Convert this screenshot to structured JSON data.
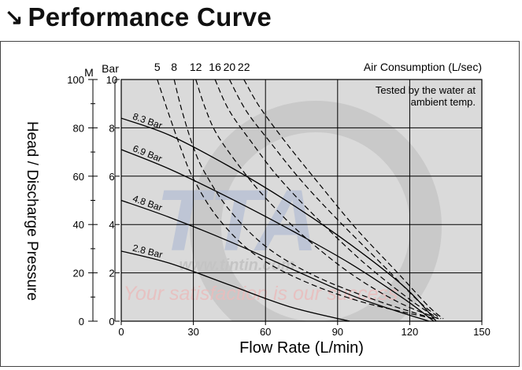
{
  "header": {
    "arrow_icon": "south-east-arrow-icon",
    "arrow_glyph": "↘",
    "title": "Performance Curve"
  },
  "chart_data": {
    "type": "line",
    "title": "Performance Curve",
    "xlabel": "Flow Rate (L/min)",
    "ylabel": "Head / Discharge Pressure",
    "xlim": [
      0,
      150
    ],
    "x_ticks": [
      0,
      30,
      60,
      90,
      120,
      150
    ],
    "y_left_unit": "M",
    "y_left_lim": [
      0,
      100
    ],
    "y_left_ticks": [
      0,
      20,
      40,
      60,
      80,
      100
    ],
    "y_right_unit": "Bar",
    "y_right_lim": [
      0,
      10
    ],
    "y_right_ticks": [
      0,
      2,
      4,
      6,
      8,
      10
    ],
    "grid": true,
    "top_axis_label": "Air Consumption (L/sec)",
    "note": [
      "Tested by the water at",
      "ambient temp."
    ],
    "colors": {
      "plot_bg": "#dadada",
      "line": "#000000",
      "grid": "#000000"
    },
    "pressure_series": [
      {
        "name": "8.3 Bar",
        "points": [
          [
            0,
            84
          ],
          [
            20,
            77
          ],
          [
            45,
            64
          ],
          [
            70,
            49
          ],
          [
            95,
            32
          ],
          [
            118,
            14
          ],
          [
            131,
            0
          ]
        ]
      },
      {
        "name": "6.9 Bar",
        "points": [
          [
            0,
            71
          ],
          [
            20,
            63
          ],
          [
            45,
            51
          ],
          [
            70,
            38
          ],
          [
            95,
            24
          ],
          [
            118,
            9
          ],
          [
            130,
            0
          ]
        ]
      },
      {
        "name": "4.8 Bar",
        "points": [
          [
            0,
            50
          ],
          [
            20,
            43
          ],
          [
            45,
            33
          ],
          [
            70,
            22
          ],
          [
            95,
            11
          ],
          [
            112,
            5
          ],
          [
            128,
            0
          ]
        ]
      },
      {
        "name": "2.8 Bar",
        "points": [
          [
            0,
            29
          ],
          [
            20,
            24
          ],
          [
            45,
            15
          ],
          [
            70,
            6
          ],
          [
            95,
            0
          ]
        ]
      }
    ],
    "air_consumption_series": [
      {
        "name": "5",
        "points": [
          [
            15,
            100
          ],
          [
            20,
            85
          ],
          [
            25,
            71
          ],
          [
            30,
            59
          ],
          [
            40,
            43
          ],
          [
            55,
            28
          ],
          [
            75,
            17
          ],
          [
            100,
            8
          ],
          [
            130,
            1
          ]
        ]
      },
      {
        "name": "8",
        "points": [
          [
            22,
            100
          ],
          [
            25,
            88
          ],
          [
            30,
            72
          ],
          [
            35,
            61
          ],
          [
            45,
            46
          ],
          [
            60,
            31
          ],
          [
            80,
            19
          ],
          [
            105,
            9
          ],
          [
            130,
            1
          ]
        ]
      },
      {
        "name": "12",
        "points": [
          [
            31,
            100
          ],
          [
            35,
            88
          ],
          [
            40,
            77
          ],
          [
            50,
            63
          ],
          [
            60,
            51
          ],
          [
            75,
            36
          ],
          [
            95,
            20
          ],
          [
            115,
            8
          ],
          [
            132,
            1
          ]
        ]
      },
      {
        "name": "16",
        "points": [
          [
            39,
            100
          ],
          [
            45,
            87
          ],
          [
            55,
            73
          ],
          [
            65,
            60
          ],
          [
            80,
            44
          ],
          [
            100,
            25
          ],
          [
            120,
            9
          ],
          [
            132,
            1
          ]
        ]
      },
      {
        "name": "20",
        "points": [
          [
            45,
            100
          ],
          [
            52,
            87
          ],
          [
            62,
            74
          ],
          [
            75,
            58
          ],
          [
            90,
            42
          ],
          [
            108,
            24
          ],
          [
            124,
            8
          ],
          [
            133,
            1
          ]
        ]
      },
      {
        "name": "22",
        "points": [
          [
            51,
            100
          ],
          [
            58,
            88
          ],
          [
            70,
            72
          ],
          [
            83,
            56
          ],
          [
            98,
            38
          ],
          [
            115,
            20
          ],
          [
            128,
            6
          ],
          [
            134,
            1
          ]
        ]
      }
    ]
  },
  "watermark": {
    "logo_text": "TTA",
    "url_text": "www.tintin.com",
    "slogan": "Your satisfaction is our success"
  }
}
